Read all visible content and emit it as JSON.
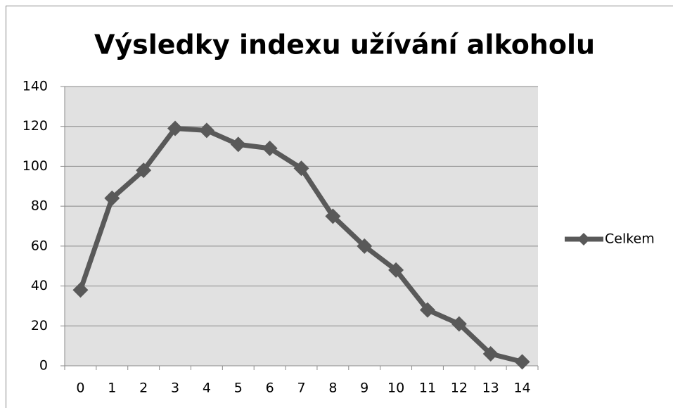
{
  "chart_data": {
    "type": "line",
    "title": "Výsledky indexu užívání alkoholu",
    "categories": [
      "0",
      "1",
      "2",
      "3",
      "4",
      "5",
      "6",
      "7",
      "8",
      "9",
      "10",
      "11",
      "12",
      "13",
      "14"
    ],
    "series": [
      {
        "name": "Celkem",
        "color": "#595959",
        "values": [
          38,
          84,
          98,
          119,
          118,
          111,
          109,
          99,
          75,
          60,
          48,
          28,
          21,
          6,
          2
        ]
      }
    ],
    "ylim": [
      0,
      140
    ],
    "yticks": [
      0,
      20,
      40,
      60,
      80,
      100,
      120,
      140
    ],
    "grid": true,
    "legend": "right"
  }
}
